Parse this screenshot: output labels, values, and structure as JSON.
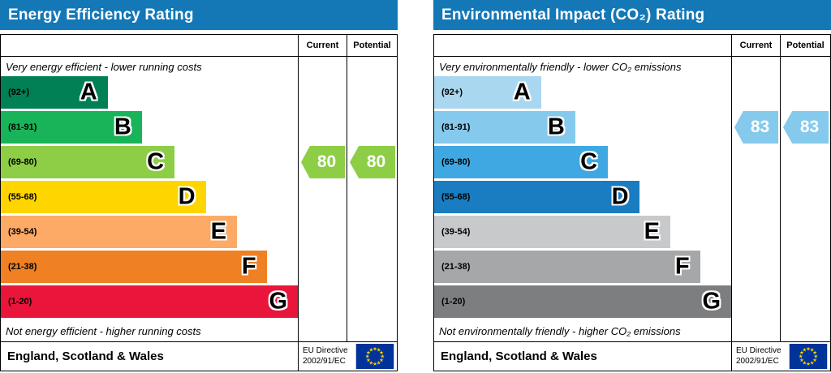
{
  "charts": [
    {
      "id": "energy",
      "title": "Energy Efficiency Rating",
      "header_color": "#1478b7",
      "columns": {
        "current": "Current",
        "potential": "Potential"
      },
      "caption_top": "Very energy efficient - lower running costs",
      "caption_bottom": "Not energy efficient - higher running costs",
      "bands": [
        {
          "letter": "A",
          "range": "(92+)",
          "color": "#008054",
          "width_pct": 36
        },
        {
          "letter": "B",
          "range": "(81-91)",
          "color": "#19b459",
          "width_pct": 47.5
        },
        {
          "letter": "C",
          "range": "(69-80)",
          "color": "#8dce46",
          "width_pct": 58.5
        },
        {
          "letter": "D",
          "range": "(55-68)",
          "color": "#ffd500",
          "width_pct": 69
        },
        {
          "letter": "E",
          "range": "(39-54)",
          "color": "#fcaa65",
          "width_pct": 79.5
        },
        {
          "letter": "F",
          "range": "(21-38)",
          "color": "#ef8023",
          "width_pct": 89.5
        },
        {
          "letter": "G",
          "range": "(1-20)",
          "color": "#e9153b",
          "width_pct": 100
        }
      ],
      "current": {
        "value": 80,
        "band": "C",
        "color": "#8dce46"
      },
      "potential": {
        "value": 80,
        "band": "C",
        "color": "#8dce46"
      },
      "footer": {
        "region": "England, Scotland & Wales",
        "directive_line1": "EU Directive",
        "directive_line2": "2002/91/EC"
      }
    },
    {
      "id": "co2",
      "title": "Environmental Impact (CO₂) Rating",
      "header_color": "#1478b7",
      "columns": {
        "current": "Current",
        "potential": "Potential"
      },
      "caption_top": "Very environmentally friendly - lower CO₂ emissions",
      "caption_bottom": "Not environmentally friendly - higher CO₂ emissions",
      "bands": [
        {
          "letter": "A",
          "range": "(92+)",
          "color": "#aad7f0",
          "width_pct": 36
        },
        {
          "letter": "B",
          "range": "(81-91)",
          "color": "#85c9ec",
          "width_pct": 47.5
        },
        {
          "letter": "C",
          "range": "(69-80)",
          "color": "#3fa8e2",
          "width_pct": 58.5
        },
        {
          "letter": "D",
          "range": "(55-68)",
          "color": "#1a7cc1",
          "width_pct": 69
        },
        {
          "letter": "E",
          "range": "(39-54)",
          "color": "#c8c9ca",
          "width_pct": 79.5
        },
        {
          "letter": "F",
          "range": "(21-38)",
          "color": "#a6a7a8",
          "width_pct": 89.5
        },
        {
          "letter": "G",
          "range": "(1-20)",
          "color": "#7c7e80",
          "width_pct": 100
        }
      ],
      "current": {
        "value": 83,
        "band": "B",
        "color": "#85c9ec"
      },
      "potential": {
        "value": 83,
        "band": "B",
        "color": "#85c9ec"
      },
      "footer": {
        "region": "England, Scotland & Wales",
        "directive_line1": "EU Directive",
        "directive_line2": "2002/91/EC"
      }
    }
  ],
  "chart_data": [
    {
      "type": "bar",
      "title": "Energy Efficiency Rating",
      "categories": [
        "A (92+)",
        "B (81-91)",
        "C (69-80)",
        "D (55-68)",
        "E (39-54)",
        "F (21-38)",
        "G (1-20)"
      ],
      "band_colors": [
        "#008054",
        "#19b459",
        "#8dce46",
        "#ffd500",
        "#fcaa65",
        "#ef8023",
        "#e9153b"
      ],
      "current": 80,
      "potential": 80,
      "current_band": "C",
      "potential_band": "C",
      "top_caption": "Very energy efficient - lower running costs",
      "bottom_caption": "Not energy efficient - higher running costs",
      "region": "England, Scotland & Wales",
      "directive": "EU Directive 2002/91/EC"
    },
    {
      "type": "bar",
      "title": "Environmental Impact (CO₂) Rating",
      "categories": [
        "A (92+)",
        "B (81-91)",
        "C (69-80)",
        "D (55-68)",
        "E (39-54)",
        "F (21-38)",
        "G (1-20)"
      ],
      "band_colors": [
        "#aad7f0",
        "#85c9ec",
        "#3fa8e2",
        "#1a7cc1",
        "#c8c9ca",
        "#a6a7a8",
        "#7c7e80"
      ],
      "current": 83,
      "potential": 83,
      "current_band": "B",
      "potential_band": "B",
      "top_caption": "Very environmentally friendly - lower CO₂ emissions",
      "bottom_caption": "Not environmentally friendly - higher CO₂ emissions",
      "region": "England, Scotland & Wales",
      "directive": "EU Directive 2002/91/EC"
    }
  ]
}
